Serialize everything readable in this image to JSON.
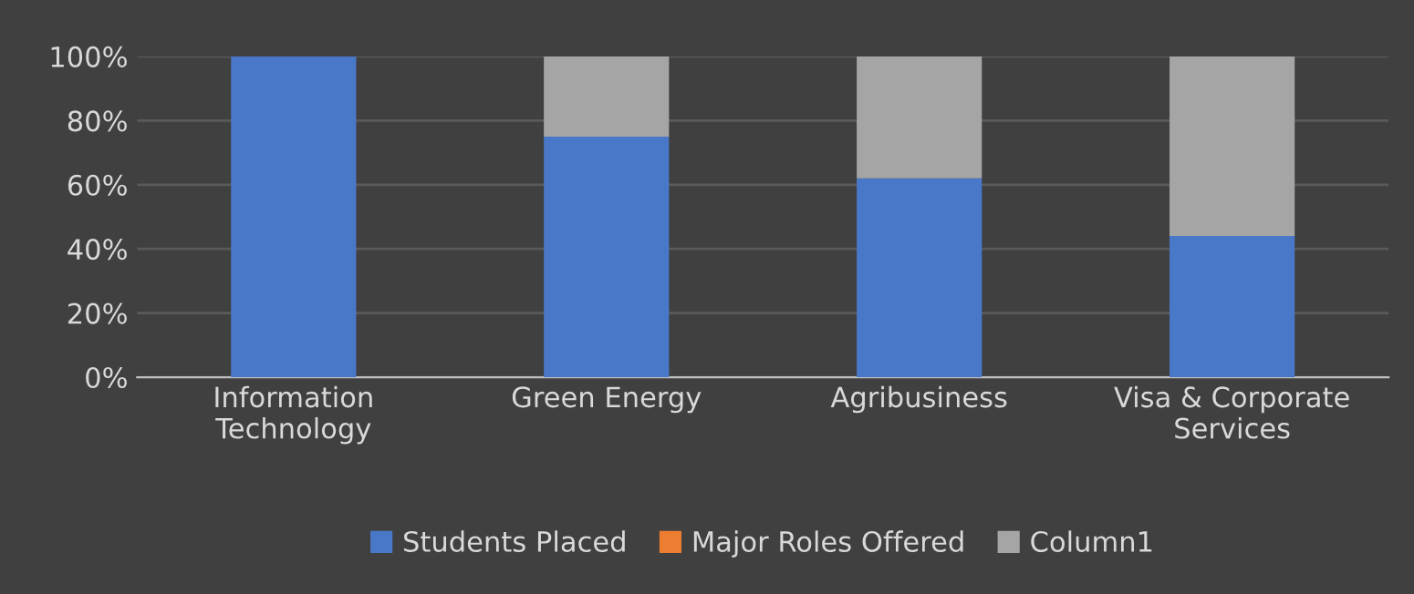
{
  "chart_data": {
    "type": "bar",
    "stacked": true,
    "categories": [
      "Information\nTechnology",
      "Green Energy",
      "Agribusiness",
      "Visa & Corporate\nServices"
    ],
    "series": [
      {
        "name": "Students Placed",
        "color": "#4a78c8",
        "values": [
          100,
          75,
          62,
          44
        ]
      },
      {
        "name": "Major Roles Offered",
        "color": "#ed7d31",
        "values": [
          0,
          0,
          0,
          0
        ]
      },
      {
        "name": "Column1",
        "color": "#a5a5a5",
        "values": [
          0,
          25,
          38,
          56
        ]
      }
    ],
    "ylim": [
      0,
      100
    ],
    "yticks": [
      {
        "value": 0,
        "label": "0%"
      },
      {
        "value": 20,
        "label": "20%"
      },
      {
        "value": 40,
        "label": "40%"
      },
      {
        "value": 60,
        "label": "60%"
      },
      {
        "value": 80,
        "label": "80%"
      },
      {
        "value": 100,
        "label": "100%"
      }
    ],
    "grid": "y",
    "legend": "bottom"
  }
}
